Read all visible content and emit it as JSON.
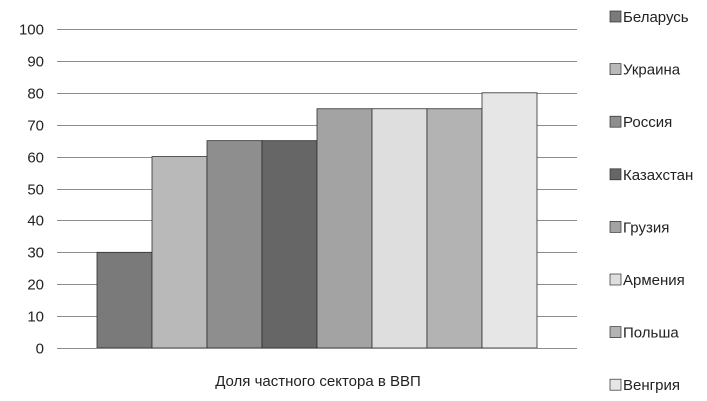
{
  "chart_data": {
    "type": "bar",
    "categories": [
      "Беларусь",
      "Украина",
      "Россия",
      "Казахстан",
      "Грузия",
      "Армения",
      "Польша",
      "Венгрия"
    ],
    "values": [
      30,
      60,
      65,
      65,
      75,
      75,
      75,
      80
    ],
    "colors": [
      "#7a7a7a",
      "#b9b9b9",
      "#8e8e8e",
      "#666666",
      "#a3a3a3",
      "#dedede",
      "#b3b3b3",
      "#e6e6e6"
    ],
    "title": "",
    "xlabel": "Доля частного сектора в ВВП",
    "ylabel": "",
    "ylim": [
      0,
      100
    ],
    "yticks": [
      0,
      10,
      20,
      30,
      40,
      50,
      60,
      70,
      80,
      90,
      100
    ],
    "grid": true,
    "legend_position": "right"
  }
}
